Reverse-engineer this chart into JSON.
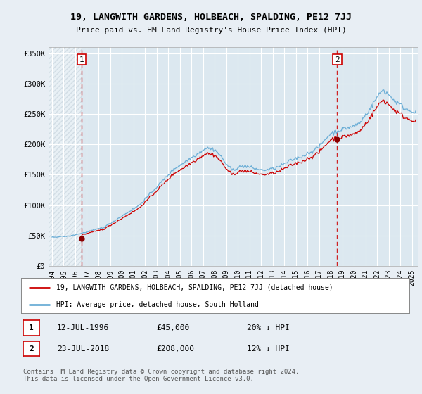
{
  "title": "19, LANGWITH GARDENS, HOLBEACH, SPALDING, PE12 7JJ",
  "subtitle": "Price paid vs. HM Land Registry's House Price Index (HPI)",
  "ylim": [
    0,
    360000
  ],
  "xlim_start": 1993.7,
  "xlim_end": 2025.5,
  "yticks": [
    0,
    50000,
    100000,
    150000,
    200000,
    250000,
    300000,
    350000
  ],
  "ytick_labels": [
    "£0",
    "£50K",
    "£100K",
    "£150K",
    "£200K",
    "£250K",
    "£300K",
    "£350K"
  ],
  "xtick_years": [
    1994,
    1995,
    1996,
    1997,
    1998,
    1999,
    2000,
    2001,
    2002,
    2003,
    2004,
    2005,
    2006,
    2007,
    2008,
    2009,
    2010,
    2011,
    2012,
    2013,
    2014,
    2015,
    2016,
    2017,
    2018,
    2019,
    2020,
    2021,
    2022,
    2023,
    2024,
    2025
  ],
  "sale1_x": 1996.54,
  "sale1_y": 45000,
  "sale1_label": "1",
  "sale2_x": 2018.56,
  "sale2_y": 208000,
  "sale2_label": "2",
  "hpi_line_color": "#6baed6",
  "price_line_color": "#cc0000",
  "marker_color": "#8b0000",
  "vline_color": "#cc0000",
  "bg_color": "#e8eef4",
  "plot_bg": "#dce8f0",
  "hatch_color": "#c8d8e4",
  "legend_label1": "19, LANGWITH GARDENS, HOLBEACH, SPALDING, PE12 7JJ (detached house)",
  "legend_label2": "HPI: Average price, detached house, South Holland",
  "annotation1_date": "12-JUL-1996",
  "annotation1_price": "£45,000",
  "annotation1_hpi": "20% ↓ HPI",
  "annotation2_date": "23-JUL-2018",
  "annotation2_price": "£208,000",
  "annotation2_hpi": "12% ↓ HPI",
  "footer": "Contains HM Land Registry data © Crown copyright and database right 2024.\nThis data is licensed under the Open Government Licence v3.0."
}
